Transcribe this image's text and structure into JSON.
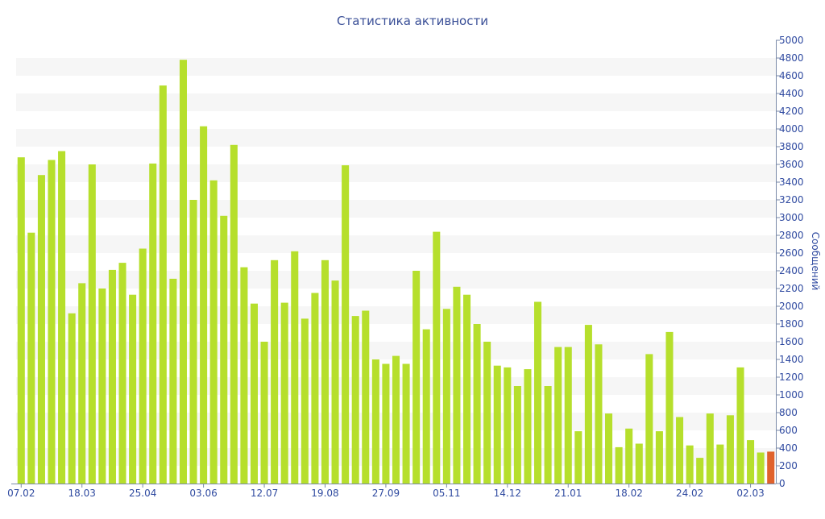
{
  "chart_data": {
    "type": "bar",
    "title": "Статистика активности",
    "xlabel": "",
    "ylabel": "Сообщений",
    "ylim": [
      0,
      5000
    ],
    "yticks": [
      0,
      200,
      400,
      600,
      800,
      1000,
      1200,
      1400,
      1600,
      1800,
      2000,
      2200,
      2400,
      2600,
      2800,
      3000,
      3200,
      3400,
      3600,
      3800,
      4000,
      4200,
      4400,
      4600,
      4800,
      5000
    ],
    "xtick_labels": [
      {
        "index": 0,
        "label": "07.02"
      },
      {
        "index": 6,
        "label": "18.03"
      },
      {
        "index": 12,
        "label": "25.04"
      },
      {
        "index": 18,
        "label": "03.06"
      },
      {
        "index": 24,
        "label": "12.07"
      },
      {
        "index": 30,
        "label": "19.08"
      },
      {
        "index": 36,
        "label": "27.09"
      },
      {
        "index": 42,
        "label": "05.11"
      },
      {
        "index": 48,
        "label": "14.12"
      },
      {
        "index": 54,
        "label": "21.01"
      },
      {
        "index": 60,
        "label": "18.02"
      },
      {
        "index": 66,
        "label": "24.02"
      },
      {
        "index": 72,
        "label": "02.03"
      }
    ],
    "values": [
      3680,
      2830,
      3480,
      3650,
      3750,
      1920,
      2260,
      3600,
      2200,
      2410,
      2490,
      2130,
      2650,
      3610,
      4490,
      2310,
      4780,
      3200,
      4030,
      3420,
      3020,
      3820,
      2440,
      2030,
      1600,
      2520,
      2040,
      2620,
      1860,
      2150,
      2520,
      2290,
      3590,
      1890,
      1950,
      1400,
      1350,
      1440,
      1350,
      2400,
      1740,
      2840,
      1970,
      2220,
      2130,
      1800,
      1600,
      1330,
      1310,
      1100,
      1290,
      2050,
      1100,
      1540,
      1540,
      590,
      1790,
      1570,
      790,
      410,
      620,
      450,
      1460,
      590,
      1710,
      750,
      430,
      290,
      790,
      440,
      770,
      1310,
      490,
      350,
      360
    ],
    "highlight_index": 74,
    "colors": {
      "bar": "#b6df2c",
      "highlight": "#e0622c",
      "band": "#f6f6f6",
      "axis_text": "#2f4aa0",
      "title_text": "#3a4f97",
      "axis_line": "#7a8aa8"
    },
    "grid": "alternating-bands"
  }
}
